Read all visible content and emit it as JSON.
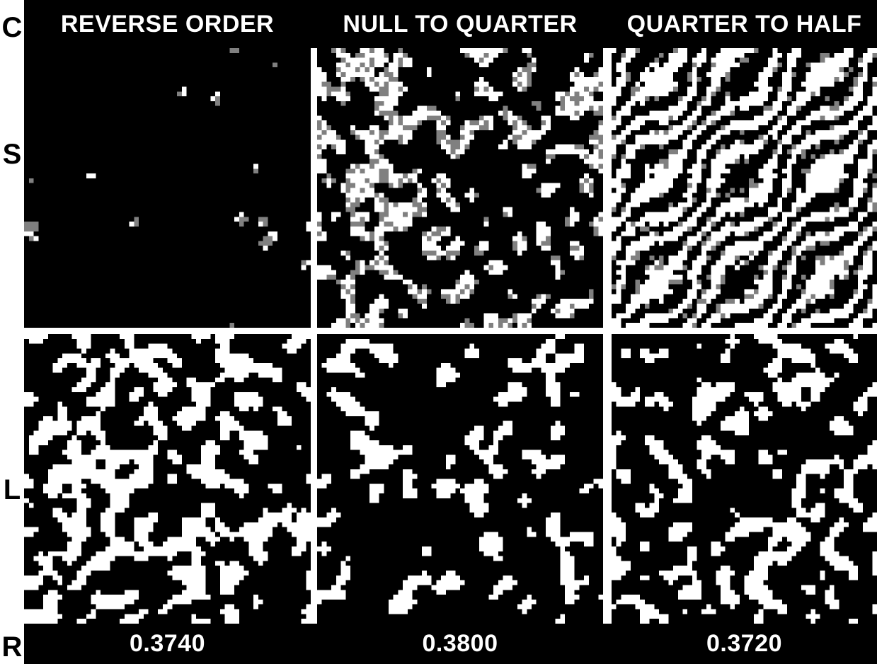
{
  "row_labels": {
    "c": "C",
    "s": "S",
    "l": "L",
    "r": "R"
  },
  "columns": [
    {
      "title": "REVERSE ORDER",
      "value": "0.3740"
    },
    {
      "title": "NULL TO QUARTER",
      "value": "0.3800"
    },
    {
      "title": "QUARTER TO HALF",
      "value": "0.3720"
    }
  ],
  "colors": {
    "black": "#000000",
    "white": "#ffffff",
    "gray": "#808080"
  }
}
